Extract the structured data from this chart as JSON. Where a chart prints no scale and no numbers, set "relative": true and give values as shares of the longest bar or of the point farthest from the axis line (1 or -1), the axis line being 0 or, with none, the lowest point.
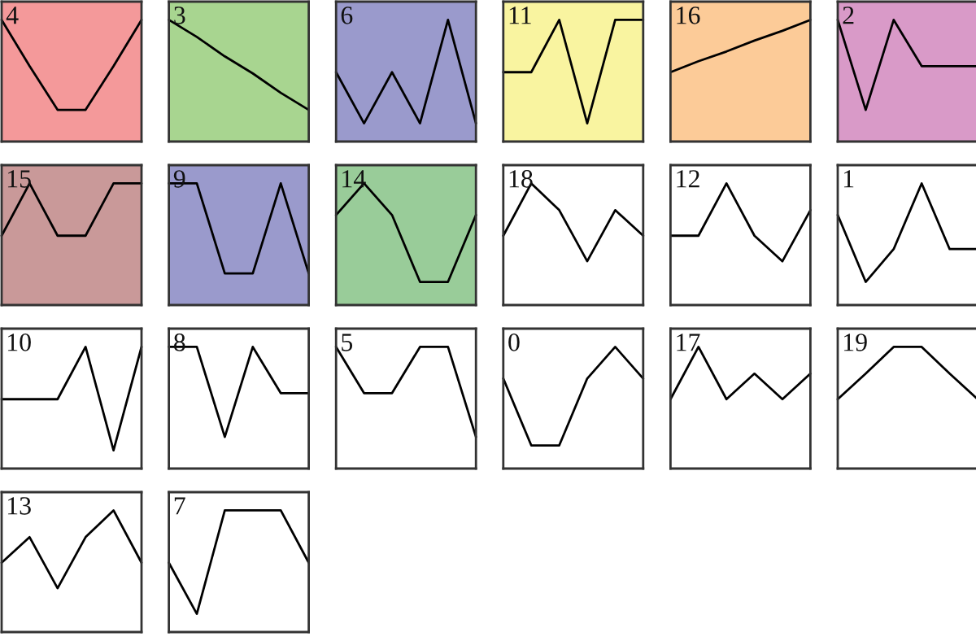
{
  "chart_data": [
    {
      "type": "line",
      "title": "4",
      "relative": true,
      "categories": [
        null,
        null,
        null,
        null,
        null,
        null
      ],
      "series": [
        {
          "color": "#000000",
          "values": [
            1,
            0.62,
            0.26,
            0.26,
            0.62,
            1
          ]
        }
      ],
      "bands": [
        {
          "axis": "y",
          "from": 0,
          "to": 1.15,
          "color": "#f4999a"
        }
      ]
    },
    {
      "type": "line",
      "title": "3",
      "relative": true,
      "categories": [
        null,
        null,
        null,
        null,
        null,
        null
      ],
      "series": [
        {
          "color": "#000000",
          "values": [
            1,
            0.86,
            0.7,
            0.56,
            0.4,
            0.26
          ]
        }
      ],
      "bands": [
        {
          "axis": "y",
          "from": 0,
          "to": 1.15,
          "color": "#a8d590"
        }
      ]
    },
    {
      "type": "line",
      "title": "6",
      "relative": true,
      "categories": [
        null,
        null,
        null,
        null,
        null,
        null
      ],
      "series": [
        {
          "color": "#000000",
          "values": [
            0.57,
            0.15,
            0.57,
            0.15,
            1,
            0.15
          ]
        }
      ],
      "bands": [
        {
          "axis": "y",
          "from": 0,
          "to": 1.15,
          "color": "#9a9acc"
        }
      ]
    },
    {
      "type": "line",
      "title": "11",
      "relative": true,
      "categories": [
        null,
        null,
        null,
        null,
        null,
        null
      ],
      "series": [
        {
          "color": "#000000",
          "values": [
            0.57,
            0.57,
            1,
            0.15,
            1,
            1
          ]
        }
      ],
      "bands": [
        {
          "axis": "y",
          "from": 0,
          "to": 1.15,
          "color": "#f9f4a0"
        }
      ]
    },
    {
      "type": "line",
      "title": "16",
      "relative": true,
      "categories": [
        null,
        null,
        null,
        null,
        null,
        null
      ],
      "series": [
        {
          "color": "#000000",
          "values": [
            0.57,
            0.66,
            0.74,
            0.83,
            0.91,
            1
          ]
        }
      ],
      "bands": [
        {
          "axis": "y",
          "from": 0,
          "to": 1.15,
          "color": "#fccb98"
        }
      ]
    },
    {
      "type": "line",
      "title": "2",
      "relative": true,
      "categories": [
        null,
        null,
        null,
        null,
        null,
        null
      ],
      "series": [
        {
          "color": "#000000",
          "values": [
            1,
            0.26,
            1,
            0.62,
            0.62,
            0.62
          ]
        }
      ],
      "bands": [
        {
          "axis": "y",
          "from": 0,
          "to": 1.15,
          "color": "#d99ac8"
        }
      ]
    },
    {
      "type": "line",
      "title": "15",
      "relative": true,
      "categories": [
        null,
        null,
        null,
        null,
        null,
        null
      ],
      "series": [
        {
          "color": "#000000",
          "values": [
            0.57,
            1,
            0.57,
            0.57,
            1,
            1
          ]
        }
      ],
      "bands": [
        {
          "axis": "y",
          "from": 0,
          "to": 1.15,
          "color": "#c99999"
        }
      ]
    },
    {
      "type": "line",
      "title": "9",
      "relative": true,
      "categories": [
        null,
        null,
        null,
        null,
        null,
        null
      ],
      "series": [
        {
          "color": "#000000",
          "values": [
            1,
            1,
            0.26,
            0.26,
            1,
            0.26
          ]
        }
      ],
      "bands": [
        {
          "axis": "y",
          "from": 0,
          "to": 1.15,
          "color": "#9a9acc"
        }
      ]
    },
    {
      "type": "line",
      "title": "14",
      "relative": true,
      "categories": [
        null,
        null,
        null,
        null,
        null,
        null
      ],
      "series": [
        {
          "color": "#000000",
          "values": [
            0.74,
            1,
            0.74,
            0.19,
            0.19,
            0.74
          ]
        }
      ],
      "bands": [
        {
          "axis": "y",
          "from": 0,
          "to": 1.15,
          "color": "#99cc99"
        }
      ]
    },
    {
      "type": "line",
      "title": "18",
      "relative": true,
      "categories": [
        null,
        null,
        null,
        null,
        null,
        null
      ],
      "series": [
        {
          "color": "#000000",
          "values": [
            0.57,
            1,
            0.78,
            0.36,
            0.78,
            0.57
          ]
        }
      ]
    },
    {
      "type": "line",
      "title": "12",
      "relative": true,
      "categories": [
        null,
        null,
        null,
        null,
        null,
        null
      ],
      "series": [
        {
          "color": "#000000",
          "values": [
            0.57,
            0.57,
            1,
            0.57,
            0.36,
            0.78
          ]
        }
      ]
    },
    {
      "type": "line",
      "title": "1",
      "relative": true,
      "categories": [
        null,
        null,
        null,
        null,
        null,
        null
      ],
      "series": [
        {
          "color": "#000000",
          "values": [
            0.74,
            0.19,
            0.46,
            1,
            0.46,
            0.46
          ]
        }
      ]
    },
    {
      "type": "line",
      "title": "10",
      "relative": true,
      "categories": [
        null,
        null,
        null,
        null,
        null,
        null
      ],
      "series": [
        {
          "color": "#000000",
          "values": [
            0.57,
            0.57,
            0.57,
            1,
            0.15,
            1
          ]
        }
      ]
    },
    {
      "type": "line",
      "title": "8",
      "relative": true,
      "categories": [
        null,
        null,
        null,
        null,
        null,
        null
      ],
      "series": [
        {
          "color": "#000000",
          "values": [
            1,
            1,
            0.26,
            1,
            0.62,
            0.62
          ]
        }
      ]
    },
    {
      "type": "line",
      "title": "5",
      "relative": true,
      "categories": [
        null,
        null,
        null,
        null,
        null,
        null
      ],
      "series": [
        {
          "color": "#000000",
          "values": [
            1,
            0.62,
            0.62,
            1,
            1,
            0.26
          ]
        }
      ]
    },
    {
      "type": "line",
      "title": "0",
      "relative": true,
      "categories": [
        null,
        null,
        null,
        null,
        null,
        null
      ],
      "series": [
        {
          "color": "#000000",
          "values": [
            0.74,
            0.19,
            0.19,
            0.74,
            1,
            0.74
          ]
        }
      ]
    },
    {
      "type": "line",
      "title": "17",
      "relative": true,
      "categories": [
        null,
        null,
        null,
        null,
        null,
        null
      ],
      "series": [
        {
          "color": "#000000",
          "values": [
            0.57,
            1,
            0.57,
            0.78,
            0.57,
            0.78
          ]
        }
      ]
    },
    {
      "type": "line",
      "title": "19",
      "relative": true,
      "categories": [
        null,
        null,
        null,
        null,
        null,
        null
      ],
      "series": [
        {
          "color": "#000000",
          "values": [
            0.57,
            0.78,
            1,
            1,
            0.78,
            0.57
          ]
        }
      ]
    },
    {
      "type": "line",
      "title": "13",
      "relative": true,
      "categories": [
        null,
        null,
        null,
        null,
        null,
        null
      ],
      "series": [
        {
          "color": "#000000",
          "values": [
            0.57,
            0.78,
            0.36,
            0.78,
            1,
            0.57
          ]
        }
      ]
    },
    {
      "type": "line",
      "title": "7",
      "relative": true,
      "categories": [
        null,
        null,
        null,
        null,
        null,
        null
      ],
      "series": [
        {
          "color": "#000000",
          "values": [
            0.57,
            0.15,
            1,
            1,
            1,
            0.57
          ]
        }
      ]
    }
  ]
}
